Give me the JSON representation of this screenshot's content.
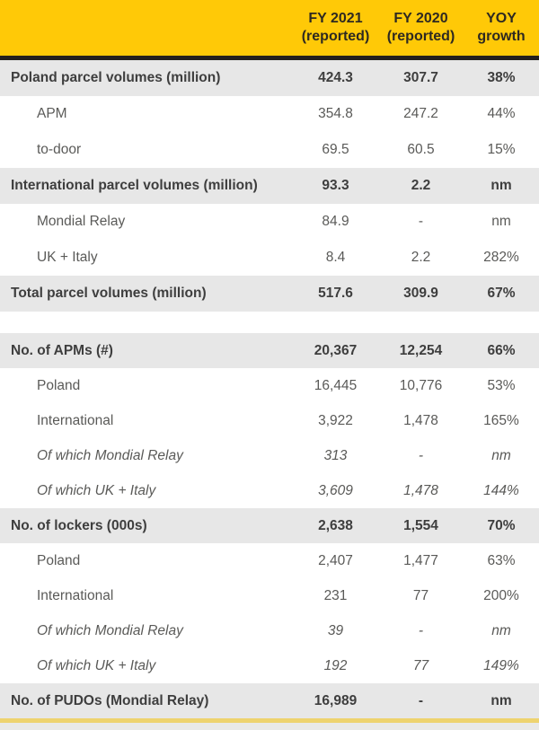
{
  "colors": {
    "brand_yellow": "#ffc907",
    "divider_dark": "#241f1d",
    "band_gray": "#e7e7e7",
    "row_white": "#ffffff",
    "text_bold": "#3e3e3e",
    "text_regular": "#5a5a58",
    "header_text": "#2e2921",
    "bottom_bar_yellow": "#eed36e",
    "bottom_strip_gray": "#e9e9e7"
  },
  "header": {
    "columns": [
      {
        "line1": "FY 2021",
        "line2": "(reported)"
      },
      {
        "line1": "FY 2020",
        "line2": "(reported)"
      },
      {
        "line1": "YOY",
        "line2": "growth"
      }
    ]
  },
  "table": {
    "sections": [
      {
        "name": "parcel-volumes",
        "rows": [
          {
            "label": "Poland parcel volumes (million)",
            "fy2021": "424.3",
            "fy2020": "307.7",
            "yoy": "38%",
            "style": "bold",
            "indent": false
          },
          {
            "label": "APM",
            "fy2021": "354.8",
            "fy2020": "247.2",
            "yoy": "44%",
            "style": "normal",
            "indent": true
          },
          {
            "label": "to-door",
            "fy2021": "69.5",
            "fy2020": "60.5",
            "yoy": "15%",
            "style": "normal",
            "indent": true
          },
          {
            "label": "International parcel volumes (million)",
            "fy2021": "93.3",
            "fy2020": "2.2",
            "yoy": "nm",
            "style": "bold",
            "indent": false
          },
          {
            "label": "Mondial Relay",
            "fy2021": "84.9",
            "fy2020": "-",
            "yoy": "nm",
            "style": "normal",
            "indent": true
          },
          {
            "label": "UK + Italy",
            "fy2021": "8.4",
            "fy2020": "2.2",
            "yoy": "282%",
            "style": "normal",
            "indent": true
          },
          {
            "label": "Total parcel volumes (million)",
            "fy2021": "517.6",
            "fy2020": "309.9",
            "yoy": "67%",
            "style": "bold",
            "indent": false
          }
        ]
      },
      {
        "name": "network",
        "rows": [
          {
            "label": "No. of APMs (#)",
            "fy2021": "20,367",
            "fy2020": "12,254",
            "yoy": "66%",
            "style": "bold",
            "indent": false
          },
          {
            "label": "Poland",
            "fy2021": "16,445",
            "fy2020": "10,776",
            "yoy": "53%",
            "style": "normal",
            "indent": true
          },
          {
            "label": "International",
            "fy2021": "3,922",
            "fy2020": "1,478",
            "yoy": "165%",
            "style": "normal",
            "indent": true
          },
          {
            "label": "Of which Mondial Relay",
            "fy2021": "313",
            "fy2020": "-",
            "yoy": "nm",
            "style": "italic",
            "indent": true
          },
          {
            "label": "Of which UK + Italy",
            "fy2021": "3,609",
            "fy2020": "1,478",
            "yoy": "144%",
            "style": "italic",
            "indent": true
          },
          {
            "label": "No. of lockers (000s)",
            "fy2021": "2,638",
            "fy2020": "1,554",
            "yoy": "70%",
            "style": "bold",
            "indent": false
          },
          {
            "label": "Poland",
            "fy2021": "2,407",
            "fy2020": "1,477",
            "yoy": "63%",
            "style": "normal",
            "indent": true
          },
          {
            "label": "International",
            "fy2021": "231",
            "fy2020": "77",
            "yoy": "200%",
            "style": "normal",
            "indent": true
          },
          {
            "label": "Of which Mondial Relay",
            "fy2021": "39",
            "fy2020": "-",
            "yoy": "nm",
            "style": "italic",
            "indent": true
          },
          {
            "label": "Of which UK + Italy",
            "fy2021": "192",
            "fy2020": "77",
            "yoy": "149%",
            "style": "italic",
            "indent": true
          },
          {
            "label": "No. of PUDOs (Mondial Relay)",
            "fy2021": "16,989",
            "fy2020": "-",
            "yoy": "nm",
            "style": "bold",
            "indent": false
          }
        ]
      }
    ]
  },
  "chart_data": {
    "type": "table",
    "columns": [
      "",
      "FY 2021 (reported)",
      "FY 2020 (reported)",
      "YOY growth"
    ],
    "rows": [
      [
        "Poland parcel volumes (million)",
        "424.3",
        "307.7",
        "38%"
      ],
      [
        "APM",
        "354.8",
        "247.2",
        "44%"
      ],
      [
        "to-door",
        "69.5",
        "60.5",
        "15%"
      ],
      [
        "International parcel volumes (million)",
        "93.3",
        "2.2",
        "nm"
      ],
      [
        "Mondial Relay",
        "84.9",
        "-",
        "nm"
      ],
      [
        "UK + Italy",
        "8.4",
        "2.2",
        "282%"
      ],
      [
        "Total parcel volumes (million)",
        "517.6",
        "309.9",
        "67%"
      ],
      [
        "No. of APMs (#)",
        "20,367",
        "12,254",
        "66%"
      ],
      [
        "Poland",
        "16,445",
        "10,776",
        "53%"
      ],
      [
        "International",
        "3,922",
        "1,478",
        "165%"
      ],
      [
        "Of which Mondial Relay",
        "313",
        "-",
        "nm"
      ],
      [
        "Of which UK + Italy",
        "3,609",
        "1,478",
        "144%"
      ],
      [
        "No. of lockers (000s)",
        "2,638",
        "1,554",
        "70%"
      ],
      [
        "Poland",
        "2,407",
        "1,477",
        "63%"
      ],
      [
        "International",
        "231",
        "77",
        "200%"
      ],
      [
        "Of which Mondial Relay",
        "39",
        "-",
        "nm"
      ],
      [
        "Of which UK + Italy",
        "192",
        "77",
        "149%"
      ],
      [
        "No. of PUDOs (Mondial Relay)",
        "16,989",
        "-",
        "nm"
      ]
    ]
  }
}
